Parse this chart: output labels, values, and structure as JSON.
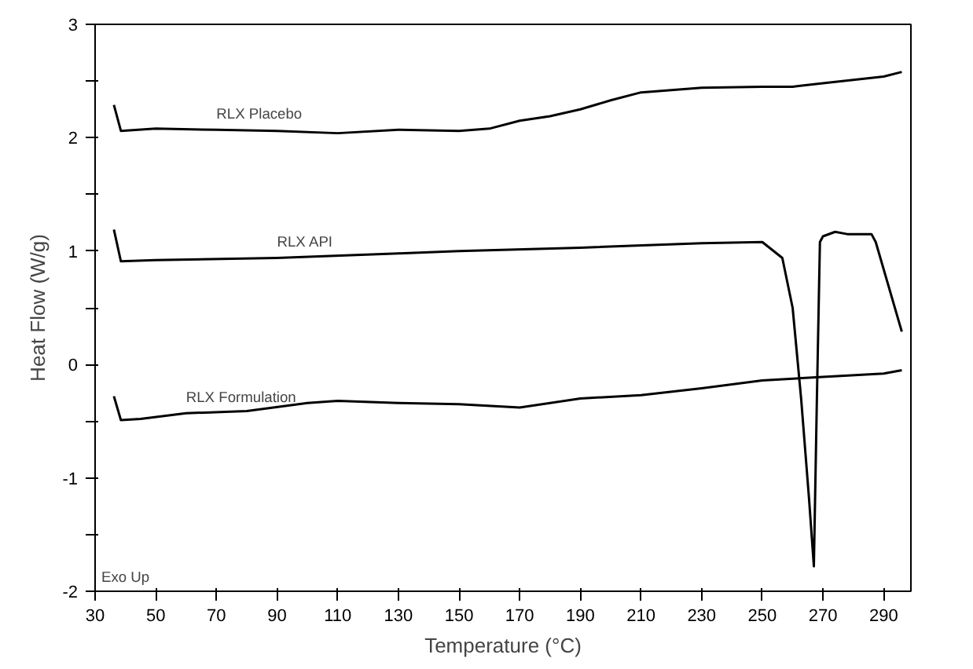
{
  "chart_data": {
    "type": "line",
    "xlabel": "Temperature (°C)",
    "ylabel": "Heat Flow (W/g)",
    "xlim": [
      30,
      299
    ],
    "ylim": [
      -2,
      3
    ],
    "xticks": [
      30,
      50,
      70,
      90,
      110,
      130,
      150,
      170,
      190,
      210,
      230,
      250,
      270,
      290
    ],
    "yticks": [
      -2,
      {
        "value": -1.5,
        "label": null
      },
      -1,
      {
        "value": -0.5,
        "label": null
      },
      0,
      {
        "value": 0.5,
        "label": null
      },
      1,
      {
        "value": 1.5,
        "label": null
      },
      2,
      {
        "value": 2.5,
        "label": null
      },
      3
    ],
    "grid": false,
    "marker": "none",
    "line_style": "solid",
    "series": [
      {
        "name": "RLX Placebo",
        "color": "#000000",
        "x": [
          36.2,
          38.5,
          50,
          70,
          90,
          110,
          130,
          150,
          160,
          170,
          180,
          190,
          200,
          210,
          230,
          250,
          260,
          270,
          290,
          296
        ],
        "values": [
          2.29,
          2.06,
          2.08,
          2.07,
          2.06,
          2.04,
          2.07,
          2.06,
          2.08,
          2.15,
          2.19,
          2.25,
          2.33,
          2.4,
          2.44,
          2.45,
          2.45,
          2.48,
          2.54,
          2.58
        ]
      },
      {
        "name": "RLX API",
        "color": "#000000",
        "x": [
          36.2,
          38.5,
          50,
          90,
          130,
          150,
          190,
          230,
          250,
          256.6,
          260,
          262.8,
          265.4,
          267,
          268,
          269,
          270,
          274,
          278,
          286,
          287.4,
          296
        ],
        "values": [
          1.19,
          0.91,
          0.92,
          0.94,
          0.98,
          1.0,
          1.03,
          1.07,
          1.08,
          0.94,
          0.5,
          -0.3,
          -1.18,
          -1.78,
          -0.3,
          1.08,
          1.13,
          1.17,
          1.15,
          1.15,
          1.08,
          0.29
        ]
      },
      {
        "name": "RLX Formulation",
        "color": "#000000",
        "x": [
          36.2,
          38.5,
          45,
          60,
          80,
          100,
          110,
          130,
          150,
          170,
          190,
          210,
          230,
          250,
          270,
          290,
          296
        ],
        "values": [
          -0.28,
          -0.49,
          -0.48,
          -0.43,
          -0.41,
          -0.34,
          -0.32,
          -0.34,
          -0.35,
          -0.38,
          -0.3,
          -0.27,
          -0.21,
          -0.14,
          -0.11,
          -0.08,
          -0.05
        ]
      }
    ],
    "annotations": [
      "Exo Up"
    ]
  }
}
